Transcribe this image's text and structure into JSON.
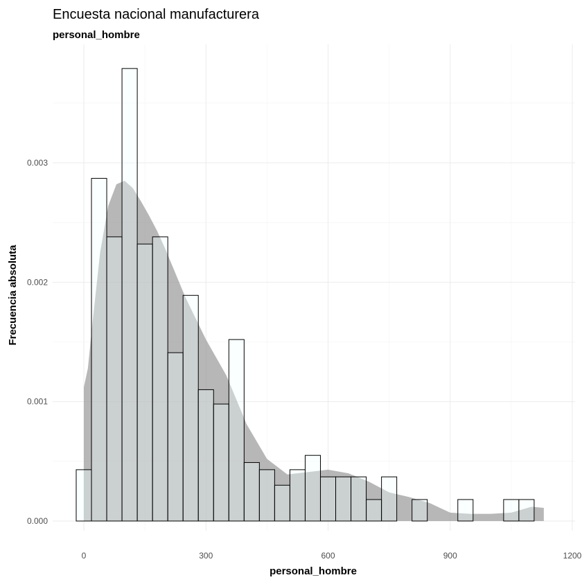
{
  "chart_data": {
    "type": "bar",
    "title": "Encuesta nacional manufacturera",
    "subtitle": "personal_hombre",
    "xlabel": "personal_hombre",
    "ylabel": "Frecuencia absoluta",
    "xlim": [
      -50,
      1200
    ],
    "ylim": [
      0,
      0.0038
    ],
    "x_ticks": [
      0,
      300,
      600,
      900,
      1200
    ],
    "x_tick_labels": [
      "0",
      "300",
      "600",
      "900",
      "1200"
    ],
    "y_ticks": [
      0,
      0.001,
      0.002,
      0.003
    ],
    "y_tick_labels": [
      "0.000",
      "0.001",
      "0.002",
      "0.003"
    ],
    "grid": true,
    "bin_width": 37.5,
    "bin_centers": [
      0,
      37.5,
      75,
      112.5,
      150,
      187.5,
      225,
      262.5,
      300,
      337.5,
      375,
      412.5,
      450,
      487.5,
      525,
      562.5,
      600,
      637.5,
      675,
      712.5,
      750,
      787.5,
      825,
      862.5,
      900,
      937.5,
      975,
      1012.5,
      1050,
      1087.5,
      1125
    ],
    "values": [
      0.00043,
      0.00287,
      0.00238,
      0.00379,
      0.00232,
      0.00238,
      0.00141,
      0.00189,
      0.0011,
      0.00098,
      0.00152,
      0.00049,
      0.00043,
      0.0003,
      0.00043,
      0.00055,
      0.00037,
      0.00037,
      0.00037,
      0.00018,
      0.00037,
      0.0,
      0.00018,
      0.0,
      0.0,
      0.00018,
      0.0,
      0.0,
      0.00018,
      0.00018,
      0.0
    ],
    "histogram_fill": "#f0ffff",
    "histogram_stroke": "#000000",
    "density": {
      "x": [
        0,
        10,
        20,
        40,
        60,
        80,
        100,
        120,
        140,
        160,
        180,
        200,
        250,
        300,
        350,
        400,
        450,
        500,
        550,
        600,
        650,
        700,
        750,
        800,
        850,
        900,
        950,
        1000,
        1050,
        1100,
        1130
      ],
      "y": [
        0.00112,
        0.00128,
        0.00162,
        0.00225,
        0.00264,
        0.00282,
        0.00285,
        0.00279,
        0.00268,
        0.00256,
        0.00243,
        0.00228,
        0.00187,
        0.00152,
        0.00122,
        0.00081,
        0.00052,
        0.00039,
        0.00041,
        0.00043,
        0.0004,
        0.00033,
        0.00024,
        0.0002,
        0.00015,
        7e-05,
        6e-05,
        6e-05,
        7e-05,
        0.00012,
        0.00011
      ],
      "fill": "#999999",
      "opacity": 0.7
    }
  }
}
